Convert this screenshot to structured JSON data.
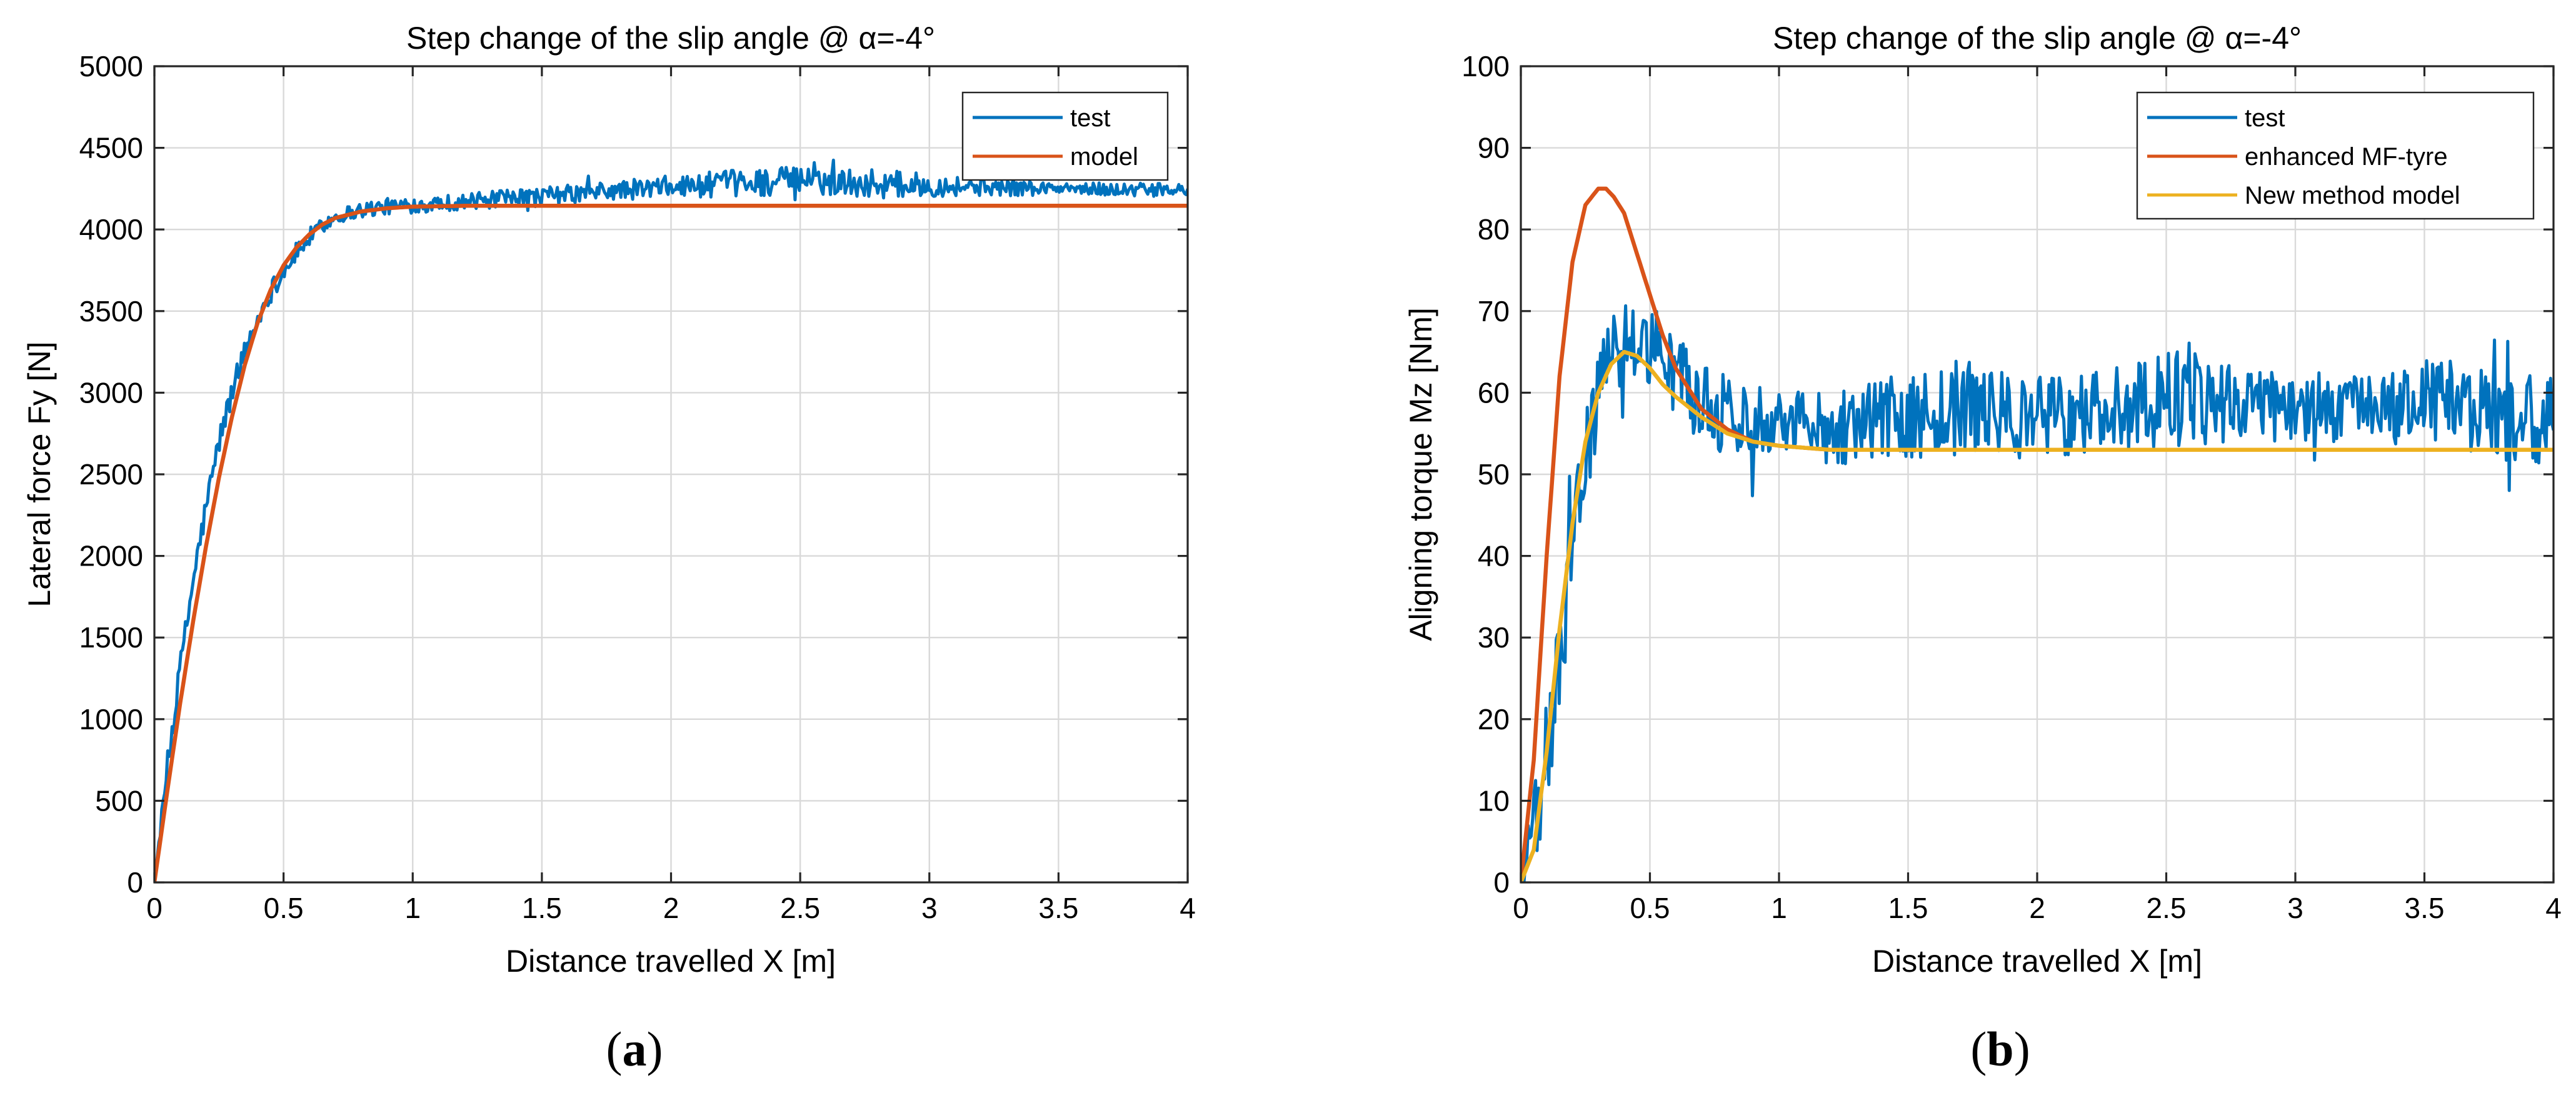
{
  "colors": {
    "test": "#0072BD",
    "model": "#D95319",
    "new_model": "#EDB120"
  },
  "chart_data": [
    {
      "id": "a",
      "type": "line",
      "caption": "a",
      "title": "Step change of the slip angle @ α=-4°",
      "xlabel": "Distance travelled X [m]",
      "ylabel": "Lateral force Fy [N]",
      "xlim": [
        0,
        4
      ],
      "ylim": [
        0,
        5000
      ],
      "xticks": [
        0,
        0.5,
        1,
        1.5,
        2,
        2.5,
        3,
        3.5,
        4
      ],
      "xtick_labels": [
        "0",
        "0.5",
        "1",
        "1.5",
        "2",
        "2.5",
        "3",
        "3.5",
        "4"
      ],
      "yticks": [
        0,
        500,
        1000,
        1500,
        2000,
        2500,
        3000,
        3500,
        4000,
        4500,
        5000
      ],
      "ytick_labels": [
        "0",
        "500",
        "1000",
        "1500",
        "2000",
        "2500",
        "3000",
        "3500",
        "4000",
        "4500",
        "5000"
      ],
      "grid": true,
      "legend_position": "top-right",
      "series": [
        {
          "name": "test",
          "color": "#0072BD",
          "style": "noisy",
          "x": [
            0,
            0.05,
            0.1,
            0.15,
            0.2,
            0.25,
            0.3,
            0.35,
            0.4,
            0.45,
            0.5,
            0.55,
            0.6,
            0.65,
            0.7,
            0.8,
            0.9,
            1.0,
            1.2,
            1.5,
            1.8,
            2.0,
            2.2,
            2.5,
            2.8,
            3.0,
            3.5,
            4.0
          ],
          "values": [
            0,
            700,
            1300,
            1850,
            2300,
            2700,
            3000,
            3250,
            3450,
            3620,
            3750,
            3860,
            3950,
            4020,
            4080,
            4120,
            4140,
            4150,
            4170,
            4200,
            4240,
            4260,
            4280,
            4300,
            4280,
            4270,
            4250,
            4240
          ],
          "noise": [
            0,
            90,
            90,
            90,
            80,
            80,
            80,
            70,
            70,
            70,
            60,
            60,
            60,
            50,
            50,
            50,
            50,
            50,
            50,
            60,
            60,
            70,
            80,
            90,
            90,
            70,
            40,
            40
          ]
        },
        {
          "name": "model",
          "color": "#D95319",
          "style": "smooth",
          "x": [
            0,
            0.05,
            0.1,
            0.15,
            0.2,
            0.25,
            0.3,
            0.35,
            0.4,
            0.45,
            0.5,
            0.55,
            0.6,
            0.65,
            0.7,
            0.8,
            0.9,
            1.0,
            1.2,
            1.5,
            2.0,
            2.5,
            3.0,
            3.5,
            4.0
          ],
          "values": [
            0,
            560,
            1100,
            1600,
            2060,
            2480,
            2850,
            3170,
            3430,
            3630,
            3780,
            3890,
            3970,
            4030,
            4070,
            4110,
            4130,
            4140,
            4145,
            4145,
            4145,
            4145,
            4145,
            4145,
            4145
          ]
        }
      ]
    },
    {
      "id": "b",
      "type": "line",
      "caption": "b",
      "title": "Step change of the slip angle @ α=-4°",
      "xlabel": "Distance travelled X [m]",
      "ylabel": "Aligning torque Mz [Nm]",
      "xlim": [
        0,
        4
      ],
      "ylim": [
        0,
        100
      ],
      "xticks": [
        0,
        0.5,
        1,
        1.5,
        2,
        2.5,
        3,
        3.5,
        4
      ],
      "xtick_labels": [
        "0",
        "0.5",
        "1",
        "1.5",
        "2",
        "2.5",
        "3",
        "3.5",
        "4"
      ],
      "yticks": [
        0,
        10,
        20,
        30,
        40,
        50,
        60,
        70,
        80,
        90,
        100
      ],
      "ytick_labels": [
        "0",
        "10",
        "20",
        "30",
        "40",
        "50",
        "60",
        "70",
        "80",
        "90",
        "100"
      ],
      "grid": true,
      "legend_position": "top-right",
      "series": [
        {
          "name": "test",
          "color": "#0072BD",
          "style": "noisy",
          "x": [
            0,
            0.05,
            0.1,
            0.15,
            0.2,
            0.25,
            0.3,
            0.35,
            0.4,
            0.45,
            0.5,
            0.6,
            0.7,
            0.8,
            1.0,
            1.2,
            1.5,
            1.7,
            2.0,
            2.3,
            2.6,
            2.8,
            3.0,
            3.3,
            3.6,
            3.8,
            4.0
          ],
          "values": [
            2,
            5,
            15,
            28,
            40,
            52,
            60,
            64,
            66,
            67,
            66,
            62,
            59,
            57,
            57,
            56,
            57,
            58,
            57,
            58,
            60,
            59,
            58,
            58,
            59,
            57,
            56
          ],
          "noise": [
            3,
            6,
            8,
            7,
            6,
            6,
            5,
            5,
            5,
            6,
            6,
            5,
            5,
            5,
            4,
            5,
            5,
            6,
            5,
            5,
            7,
            5,
            4,
            4,
            5,
            6,
            6
          ]
        },
        {
          "name": "enhanced MF-tyre",
          "color": "#D95319",
          "style": "smooth",
          "x": [
            0,
            0.05,
            0.1,
            0.15,
            0.2,
            0.25,
            0.3,
            0.33,
            0.36,
            0.4,
            0.45,
            0.5,
            0.55,
            0.6,
            0.7,
            0.8,
            0.9,
            1.0,
            1.2,
            1.5,
            2.0,
            3.0,
            4.0
          ],
          "values": [
            0,
            15,
            40,
            62,
            76,
            83,
            85,
            85,
            84,
            82,
            77,
            72,
            67,
            63,
            58,
            55.5,
            54,
            53.5,
            53,
            53,
            53,
            53,
            53
          ]
        },
        {
          "name": "New method model",
          "color": "#EDB120",
          "style": "smooth",
          "x": [
            0,
            0.05,
            0.1,
            0.15,
            0.2,
            0.25,
            0.3,
            0.35,
            0.4,
            0.45,
            0.5,
            0.55,
            0.6,
            0.7,
            0.8,
            0.9,
            1.0,
            1.2,
            1.5,
            2.0,
            3.0,
            4.0
          ],
          "values": [
            0,
            4,
            16,
            31,
            44,
            54,
            60,
            63.5,
            65,
            64.5,
            63,
            61,
            59.5,
            57,
            55,
            54,
            53.5,
            53,
            53,
            53,
            53,
            53
          ]
        }
      ]
    }
  ]
}
